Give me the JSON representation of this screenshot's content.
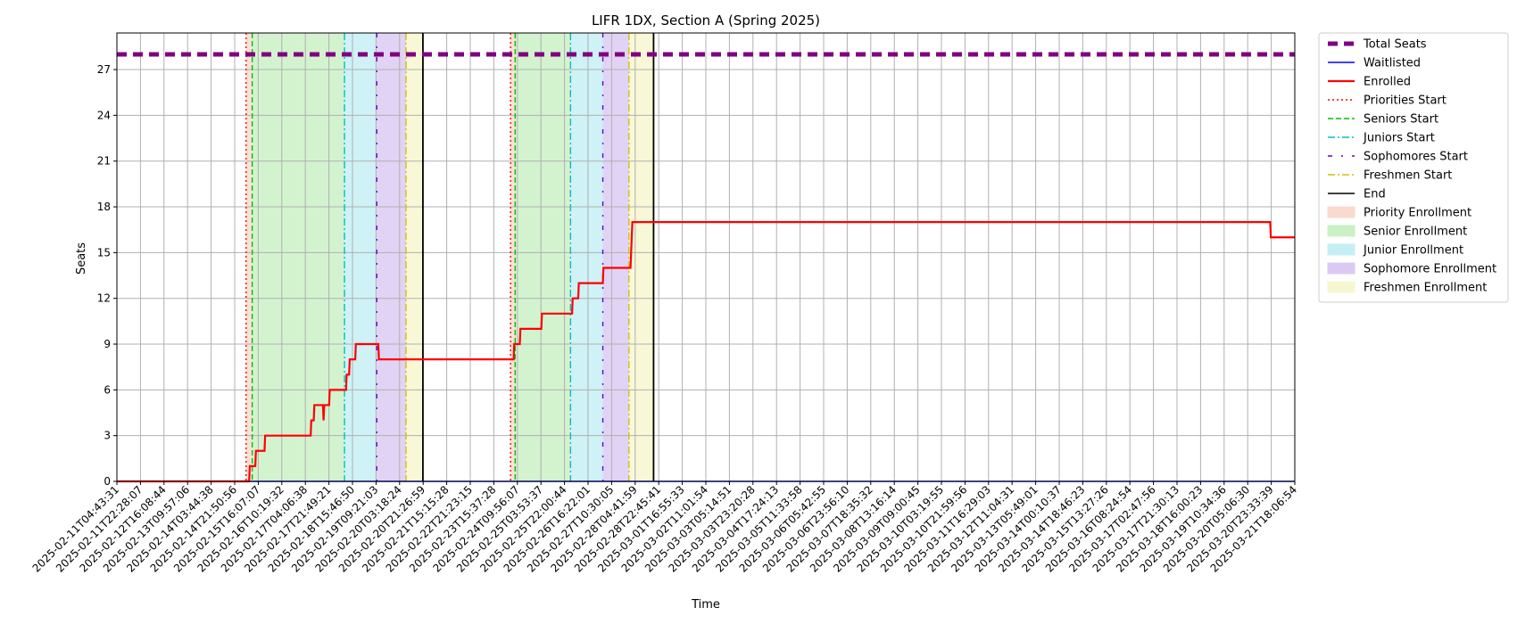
{
  "chart_data": {
    "type": "line",
    "title": "LIFR 1DX, Section A (Spring 2025)",
    "xlabel": "Time",
    "ylabel": "Seats",
    "ylim": [
      0,
      29.4
    ],
    "xlim_days": [
      0,
      38.3
    ],
    "grid": true,
    "legend_placement": "outside-right",
    "y_ticks": [
      0,
      3,
      6,
      9,
      12,
      15,
      18,
      21,
      24,
      27
    ],
    "x_tick_labels": [
      "2025-02-11T04:43:31",
      "2025-02-11T22:28:07",
      "2025-02-12T16:08:44",
      "2025-02-13T09:57:06",
      "2025-02-14T03:44:38",
      "2025-02-14T21:50:56",
      "2025-02-15T16:07:07",
      "2025-02-16T10:19:32",
      "2025-02-17T04:06:38",
      "2025-02-17T21:49:21",
      "2025-02-18T15:46:50",
      "2025-02-19T09:21:03",
      "2025-02-20T03:18:24",
      "2025-02-20T21:26:59",
      "2025-02-21T15:15:28",
      "2025-02-22T21:23:15",
      "2025-02-23T15:37:28",
      "2025-02-24T09:56:07",
      "2025-02-25T03:53:37",
      "2025-02-25T22:00:44",
      "2025-02-26T16:22:01",
      "2025-02-27T10:30:05",
      "2025-02-28T04:41:59",
      "2025-02-28T22:45:41",
      "2025-03-01T16:55:33",
      "2025-03-02T11:01:54",
      "2025-03-03T05:14:51",
      "2025-03-03T23:20:28",
      "2025-03-04T17:24:13",
      "2025-03-05T11:33:58",
      "2025-03-06T05:42:55",
      "2025-03-06T23:56:10",
      "2025-03-07T18:35:32",
      "2025-03-08T13:16:14",
      "2025-03-09T09:00:45",
      "2025-03-10T03:19:55",
      "2025-03-10T21:59:56",
      "2025-03-11T16:29:03",
      "2025-03-12T11:04:31",
      "2025-03-13T05:49:01",
      "2025-03-14T00:10:37",
      "2025-03-14T18:46:23",
      "2025-03-15T13:27:26",
      "2025-03-16T08:24:54",
      "2025-03-17T02:47:56",
      "2025-03-17T21:30:13",
      "2025-03-18T16:00:23",
      "2025-03-19T10:34:36",
      "2025-03-20T05:06:30",
      "2025-03-20T23:33:39",
      "2025-03-21T18:06:54"
    ],
    "series": [
      {
        "name": "Total Seats",
        "color": "#800080",
        "style": "dashed-thick",
        "points": [
          [
            0,
            28
          ],
          [
            38.3,
            28
          ]
        ]
      },
      {
        "name": "Waitlisted",
        "color": "#0000ff",
        "style": "solid",
        "points": [
          [
            0,
            0
          ],
          [
            38.3,
            0
          ]
        ]
      },
      {
        "name": "Enrolled",
        "color": "#ff0000",
        "style": "step",
        "points": [
          [
            0,
            0
          ],
          [
            4.3,
            0
          ],
          [
            4.32,
            1
          ],
          [
            4.5,
            1
          ],
          [
            4.52,
            2
          ],
          [
            4.8,
            2
          ],
          [
            4.82,
            3
          ],
          [
            6.3,
            3
          ],
          [
            6.32,
            4
          ],
          [
            6.4,
            4
          ],
          [
            6.42,
            5
          ],
          [
            6.7,
            5
          ],
          [
            6.72,
            4
          ],
          [
            6.74,
            5
          ],
          [
            6.9,
            5
          ],
          [
            6.92,
            6
          ],
          [
            7.45,
            6
          ],
          [
            7.47,
            7
          ],
          [
            7.55,
            7
          ],
          [
            7.57,
            8
          ],
          [
            7.75,
            8
          ],
          [
            7.77,
            9
          ],
          [
            8.5,
            9
          ],
          [
            8.52,
            8
          ],
          [
            12.9,
            8
          ],
          [
            12.92,
            9
          ],
          [
            13.1,
            9
          ],
          [
            13.12,
            10
          ],
          [
            13.8,
            10
          ],
          [
            13.82,
            11
          ],
          [
            14.8,
            11
          ],
          [
            14.82,
            12
          ],
          [
            15.0,
            12
          ],
          [
            15.02,
            13
          ],
          [
            15.8,
            13
          ],
          [
            15.82,
            14
          ],
          [
            16.7,
            14
          ],
          [
            16.72,
            15
          ],
          [
            16.74,
            16
          ],
          [
            16.76,
            17
          ],
          [
            37.5,
            17
          ],
          [
            37.52,
            16
          ],
          [
            38.3,
            16
          ]
        ]
      }
    ],
    "markers": [
      {
        "name": "Priorities Start",
        "color": "#ff0000",
        "style": "dotted",
        "x": [
          4.2,
          12.8
        ]
      },
      {
        "name": "Seniors Start",
        "color": "#00c000",
        "style": "dashed",
        "x": [
          4.4,
          12.95
        ]
      },
      {
        "name": "Juniors Start",
        "color": "#00bfbf",
        "style": "dashdot",
        "x": [
          7.4,
          14.75
        ]
      },
      {
        "name": "Sophomores Start",
        "color": "#6a00d0",
        "style": "dashdot-sparse",
        "x": [
          8.45,
          15.8
        ]
      },
      {
        "name": "Freshmen Start",
        "color": "#d4c000",
        "style": "dashdot",
        "x": [
          9.4,
          16.65
        ]
      },
      {
        "name": "End",
        "color": "#000000",
        "style": "solid",
        "x": [
          9.95,
          17.45
        ]
      }
    ],
    "regions": [
      {
        "name": "Priority Enrollment",
        "color": "#f4c2b0",
        "ranges": [
          [
            4.2,
            4.4
          ],
          [
            12.8,
            12.95
          ]
        ]
      },
      {
        "name": "Senior Enrollment",
        "color": "#a8e8a0",
        "ranges": [
          [
            4.4,
            7.4
          ],
          [
            12.95,
            14.75
          ]
        ]
      },
      {
        "name": "Junior Enrollment",
        "color": "#9ee6ee",
        "ranges": [
          [
            7.4,
            8.45
          ],
          [
            14.75,
            15.8
          ]
        ]
      },
      {
        "name": "Sophomore Enrollment",
        "color": "#c3a8ec",
        "ranges": [
          [
            8.45,
            9.4
          ],
          [
            15.8,
            16.65
          ]
        ]
      },
      {
        "name": "Freshmen Enrollment",
        "color": "#f2f2b0",
        "ranges": [
          [
            9.4,
            9.95
          ],
          [
            16.65,
            17.45
          ]
        ]
      }
    ],
    "legend": [
      {
        "label": "Total Seats",
        "kind": "line",
        "color": "#800080",
        "style": "dashed-thick"
      },
      {
        "label": "Waitlisted",
        "kind": "line",
        "color": "#0000ff",
        "style": "solid"
      },
      {
        "label": "Enrolled",
        "kind": "line",
        "color": "#ff0000",
        "style": "solid-thick"
      },
      {
        "label": "Priorities Start",
        "kind": "line",
        "color": "#ff0000",
        "style": "dotted"
      },
      {
        "label": "Seniors Start",
        "kind": "line",
        "color": "#00c000",
        "style": "dashed"
      },
      {
        "label": "Juniors Start",
        "kind": "line",
        "color": "#00bfbf",
        "style": "dashdot"
      },
      {
        "label": "Sophomores Start",
        "kind": "line",
        "color": "#6a00d0",
        "style": "dashdot-sparse"
      },
      {
        "label": "Freshmen Start",
        "kind": "line",
        "color": "#d4c000",
        "style": "dashdot"
      },
      {
        "label": "End",
        "kind": "line",
        "color": "#000000",
        "style": "solid"
      },
      {
        "label": "Priority Enrollment",
        "kind": "patch",
        "color": "#f4c2b0"
      },
      {
        "label": "Senior Enrollment",
        "kind": "patch",
        "color": "#a8e8a0"
      },
      {
        "label": "Junior Enrollment",
        "kind": "patch",
        "color": "#9ee6ee"
      },
      {
        "label": "Sophomore Enrollment",
        "kind": "patch",
        "color": "#c3a8ec"
      },
      {
        "label": "Freshmen Enrollment",
        "kind": "patch",
        "color": "#f2f2b0"
      }
    ]
  }
}
